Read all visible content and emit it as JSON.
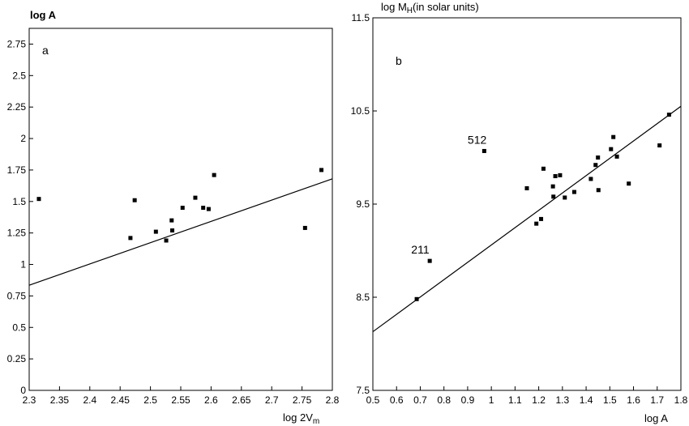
{
  "chart_data": [
    {
      "type": "scatter",
      "panel_label": "a",
      "ylabel": "log A",
      "xlabel_main": "log 2V",
      "xlabel_sub": "m",
      "xlim": [
        2.3,
        2.8
      ],
      "ylim": [
        0,
        2.875
      ],
      "xticks": [
        2.3,
        2.35,
        2.4,
        2.45,
        2.5,
        2.55,
        2.6,
        2.65,
        2.7,
        2.75,
        2.8
      ],
      "xtick_labels": [
        "2.3",
        "2.35",
        "2.4",
        "2.45",
        "2.5",
        "2.55",
        "2.6",
        "2.65",
        "2.7",
        "2.75",
        "2.8"
      ],
      "yticks": [
        0,
        0.25,
        0.5,
        0.75,
        1,
        1.25,
        1.5,
        1.75,
        2,
        2.25,
        2.5,
        2.75
      ],
      "ytick_labels": [
        "0",
        "0.25",
        "0.5",
        "0.75",
        "1",
        "1.25",
        "1.5",
        "1.75",
        "2",
        "2.25",
        "2.5",
        "2.75"
      ],
      "points": [
        {
          "x": 2.316,
          "y": 1.52
        },
        {
          "x": 2.467,
          "y": 1.21
        },
        {
          "x": 2.474,
          "y": 1.51
        },
        {
          "x": 2.509,
          "y": 1.26
        },
        {
          "x": 2.526,
          "y": 1.19
        },
        {
          "x": 2.535,
          "y": 1.35
        },
        {
          "x": 2.536,
          "y": 1.27
        },
        {
          "x": 2.553,
          "y": 1.45
        },
        {
          "x": 2.574,
          "y": 1.53
        },
        {
          "x": 2.587,
          "y": 1.45
        },
        {
          "x": 2.596,
          "y": 1.44
        },
        {
          "x": 2.605,
          "y": 1.71
        },
        {
          "x": 2.755,
          "y": 1.29
        },
        {
          "x": 2.782,
          "y": 1.75
        }
      ],
      "fit_line": [
        {
          "x": 2.3,
          "y": 0.835
        },
        {
          "x": 2.8,
          "y": 1.68
        }
      ],
      "annotations": []
    },
    {
      "type": "scatter",
      "panel_label": "b",
      "ylabel_main": "log M",
      "ylabel_sub": "H",
      "ylabel_rest": "(in solar units)",
      "xlabel": "log A",
      "xlim": [
        0.5,
        1.8
      ],
      "ylim": [
        7.5,
        11.5
      ],
      "xticks": [
        0.5,
        0.6,
        0.7,
        0.8,
        0.9,
        1,
        1.1,
        1.2,
        1.3,
        1.4,
        1.5,
        1.6,
        1.7,
        1.8
      ],
      "xtick_labels": [
        "0.5",
        "0.6",
        "0.7",
        "0.8",
        "0.9",
        "1",
        "1.1",
        "1.2",
        "1.3",
        "1.4",
        "1.5",
        "1.6",
        "1.7",
        "1.8"
      ],
      "yticks": [
        7.5,
        8.5,
        9.5,
        10.5,
        11.5
      ],
      "ytick_labels": [
        "7.5",
        "8.5",
        "9.5",
        "10.5",
        "11.5"
      ],
      "points": [
        {
          "x": 0.685,
          "y": 8.48
        },
        {
          "x": 0.74,
          "y": 8.89
        },
        {
          "x": 0.97,
          "y": 10.07
        },
        {
          "x": 1.15,
          "y": 9.67
        },
        {
          "x": 1.19,
          "y": 9.29
        },
        {
          "x": 1.21,
          "y": 9.34
        },
        {
          "x": 1.22,
          "y": 9.88
        },
        {
          "x": 1.26,
          "y": 9.69
        },
        {
          "x": 1.262,
          "y": 9.58
        },
        {
          "x": 1.27,
          "y": 9.8
        },
        {
          "x": 1.29,
          "y": 9.81
        },
        {
          "x": 1.31,
          "y": 9.57
        },
        {
          "x": 1.35,
          "y": 9.63
        },
        {
          "x": 1.42,
          "y": 9.77
        },
        {
          "x": 1.44,
          "y": 9.92
        },
        {
          "x": 1.45,
          "y": 10.0
        },
        {
          "x": 1.452,
          "y": 9.65
        },
        {
          "x": 1.505,
          "y": 10.09
        },
        {
          "x": 1.515,
          "y": 10.22
        },
        {
          "x": 1.53,
          "y": 10.01
        },
        {
          "x": 1.58,
          "y": 9.72
        },
        {
          "x": 1.71,
          "y": 10.13
        },
        {
          "x": 1.75,
          "y": 10.46
        }
      ],
      "fit_line": [
        {
          "x": 0.5,
          "y": 8.13
        },
        {
          "x": 1.8,
          "y": 10.55
        }
      ],
      "annotations": [
        {
          "text": "512",
          "x": 0.94,
          "y": 10.15
        },
        {
          "text": "211",
          "x": 0.7,
          "y": 8.97
        }
      ]
    }
  ]
}
